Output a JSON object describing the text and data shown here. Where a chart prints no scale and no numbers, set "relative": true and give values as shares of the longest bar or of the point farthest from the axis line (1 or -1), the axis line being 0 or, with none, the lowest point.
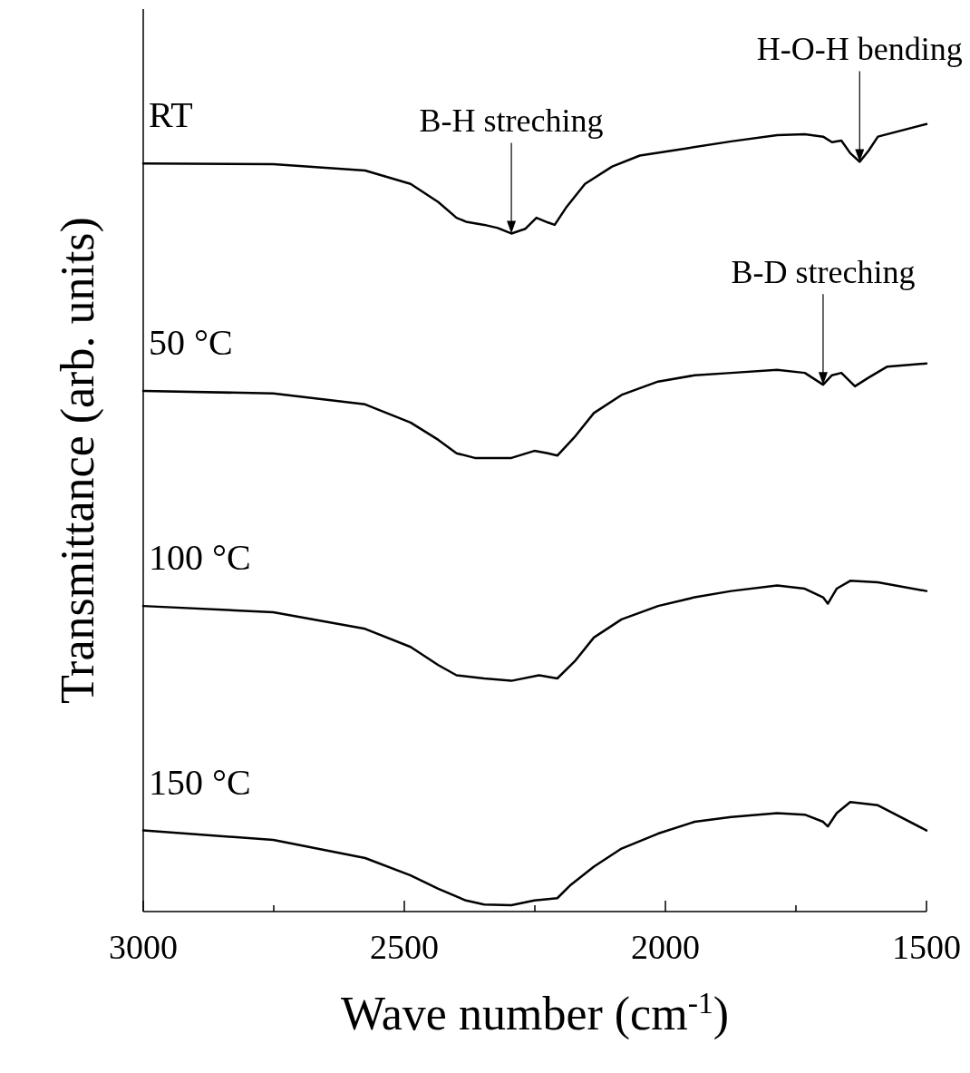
{
  "chart_data": {
    "type": "line",
    "relative": true,
    "xlabel": "Wave number (cm$^{-1}$)",
    "ylabel": "Transmittance (arb. units)",
    "xlim": [
      3000,
      1500
    ],
    "xticks": [
      3000,
      {
        "value": 2750,
        "label": null
      },
      2500,
      {
        "value": 2250,
        "label": null
      },
      2000,
      {
        "value": 1750,
        "label": null
      },
      1500
    ],
    "tick_labels": "x",
    "marker": "none",
    "line_style": "solid",
    "series": [
      {
        "name": "RT",
        "color": "#000000",
        "x": [
          3000,
          2751,
          2575,
          2488,
          2435,
          2400,
          2382,
          2347,
          2321,
          2295,
          2268,
          2247,
          2225,
          2212,
          2189,
          2154,
          2102,
          2049,
          1961,
          1874,
          1786,
          1733,
          1698,
          1681,
          1663,
          1646,
          1628,
          1611,
          1593,
          1500
        ],
        "values": [
          0.95,
          0.949,
          0.941,
          0.924,
          0.901,
          0.881,
          0.876,
          0.872,
          0.868,
          0.861,
          0.867,
          0.881,
          0.875,
          0.872,
          0.895,
          0.924,
          0.946,
          0.96,
          0.969,
          0.978,
          0.986,
          0.987,
          0.984,
          0.977,
          0.979,
          0.963,
          0.952,
          0.966,
          0.984,
          1.0
        ]
      },
      {
        "name": "50 °C",
        "color": "#000000",
        "x": [
          3000,
          2751,
          2575,
          2488,
          2435,
          2400,
          2365,
          2295,
          2251,
          2225,
          2207,
          2172,
          2137,
          2084,
          2014,
          1944,
          1874,
          1786,
          1733,
          1698,
          1681,
          1663,
          1637,
          1611,
          1575,
          1500
        ],
        "values": [
          0.661,
          0.658,
          0.644,
          0.621,
          0.599,
          0.582,
          0.576,
          0.576,
          0.585,
          0.582,
          0.579,
          0.604,
          0.633,
          0.656,
          0.673,
          0.681,
          0.684,
          0.688,
          0.684,
          0.669,
          0.681,
          0.684,
          0.667,
          0.678,
          0.692,
          0.696
        ]
      },
      {
        "name": "100 °C",
        "color": "#000000",
        "x": [
          3000,
          2751,
          2575,
          2488,
          2435,
          2400,
          2347,
          2295,
          2242,
          2207,
          2172,
          2137,
          2084,
          2014,
          1944,
          1874,
          1786,
          1733,
          1698,
          1689,
          1672,
          1646,
          1593,
          1500
        ],
        "values": [
          0.388,
          0.38,
          0.359,
          0.336,
          0.313,
          0.3,
          0.296,
          0.293,
          0.3,
          0.296,
          0.319,
          0.348,
          0.371,
          0.388,
          0.399,
          0.407,
          0.414,
          0.41,
          0.399,
          0.391,
          0.41,
          0.42,
          0.418,
          0.407
        ]
      },
      {
        "name": "150 °C",
        "color": "#000000",
        "x": [
          3000,
          2751,
          2575,
          2488,
          2435,
          2382,
          2347,
          2295,
          2251,
          2207,
          2181,
          2137,
          2084,
          2014,
          1944,
          1874,
          1786,
          1733,
          1698,
          1689,
          1672,
          1646,
          1593,
          1500
        ],
        "values": [
          0.103,
          0.091,
          0.068,
          0.046,
          0.029,
          0.014,
          0.009,
          0.008,
          0.014,
          0.017,
          0.034,
          0.057,
          0.08,
          0.099,
          0.114,
          0.12,
          0.125,
          0.123,
          0.114,
          0.108,
          0.125,
          0.139,
          0.135,
          0.103
        ]
      }
    ],
    "annotations": [
      {
        "text": "B-H streching",
        "x": 2295,
        "y": 0.861
      },
      {
        "text": "H-O-H bending",
        "x": 1628,
        "y": 0.952
      },
      {
        "text": "B-D streching",
        "x": 1698,
        "y": 0.669
      }
    ]
  }
}
